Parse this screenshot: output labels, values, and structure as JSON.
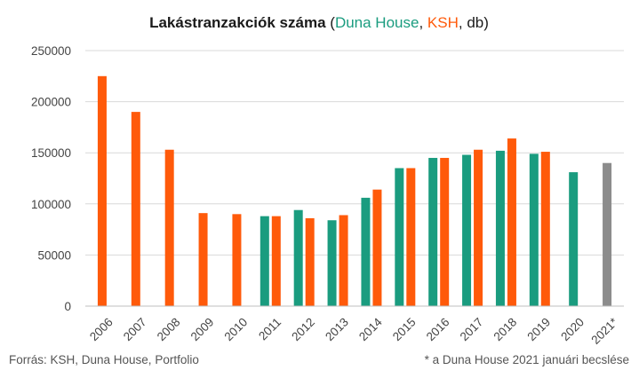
{
  "chart_data": {
    "type": "bar",
    "title": {
      "main": "Lakástranzakciók száma",
      "open": " (",
      "dh": "Duna House",
      "sep1": ", ",
      "ksh": "KSH",
      "sep2": ", db)"
    },
    "categories": [
      "2006",
      "2007",
      "2008",
      "2009",
      "2010",
      "2011",
      "2012",
      "2013",
      "2014",
      "2015",
      "2016",
      "2017",
      "2018",
      "2019",
      "2020",
      "2021*"
    ],
    "series": [
      {
        "key": "dh",
        "color": "#1a9c7f",
        "values": [
          null,
          null,
          null,
          null,
          null,
          88000,
          94000,
          84000,
          106000,
          135000,
          145000,
          148000,
          152000,
          149000,
          131000,
          null
        ]
      },
      {
        "key": "ksh",
        "color": "#ff5a0a",
        "values": [
          225000,
          190000,
          153000,
          91000,
          90000,
          88000,
          86000,
          89000,
          114000,
          135000,
          145000,
          153000,
          164000,
          151000,
          null,
          null
        ]
      },
      {
        "key": "estimate",
        "color": "#8c8c8c",
        "values": [
          null,
          null,
          null,
          null,
          null,
          null,
          null,
          null,
          null,
          null,
          null,
          null,
          null,
          null,
          null,
          140000
        ]
      }
    ],
    "ylim": [
      0,
      250000
    ],
    "yticks": [
      "0",
      "50000",
      "100000",
      "150000",
      "200000",
      "250000"
    ],
    "grid": true,
    "title_colors": {
      "main": "#1a1a1a",
      "dh": "#1a9c7f",
      "ksh": "#ff5a0a",
      "rest": "#1a1a1a"
    }
  },
  "footer": {
    "source": "Forrás: KSH, Duna House, Portfolio",
    "note": "* a Duna House 2021 januári becslése"
  }
}
